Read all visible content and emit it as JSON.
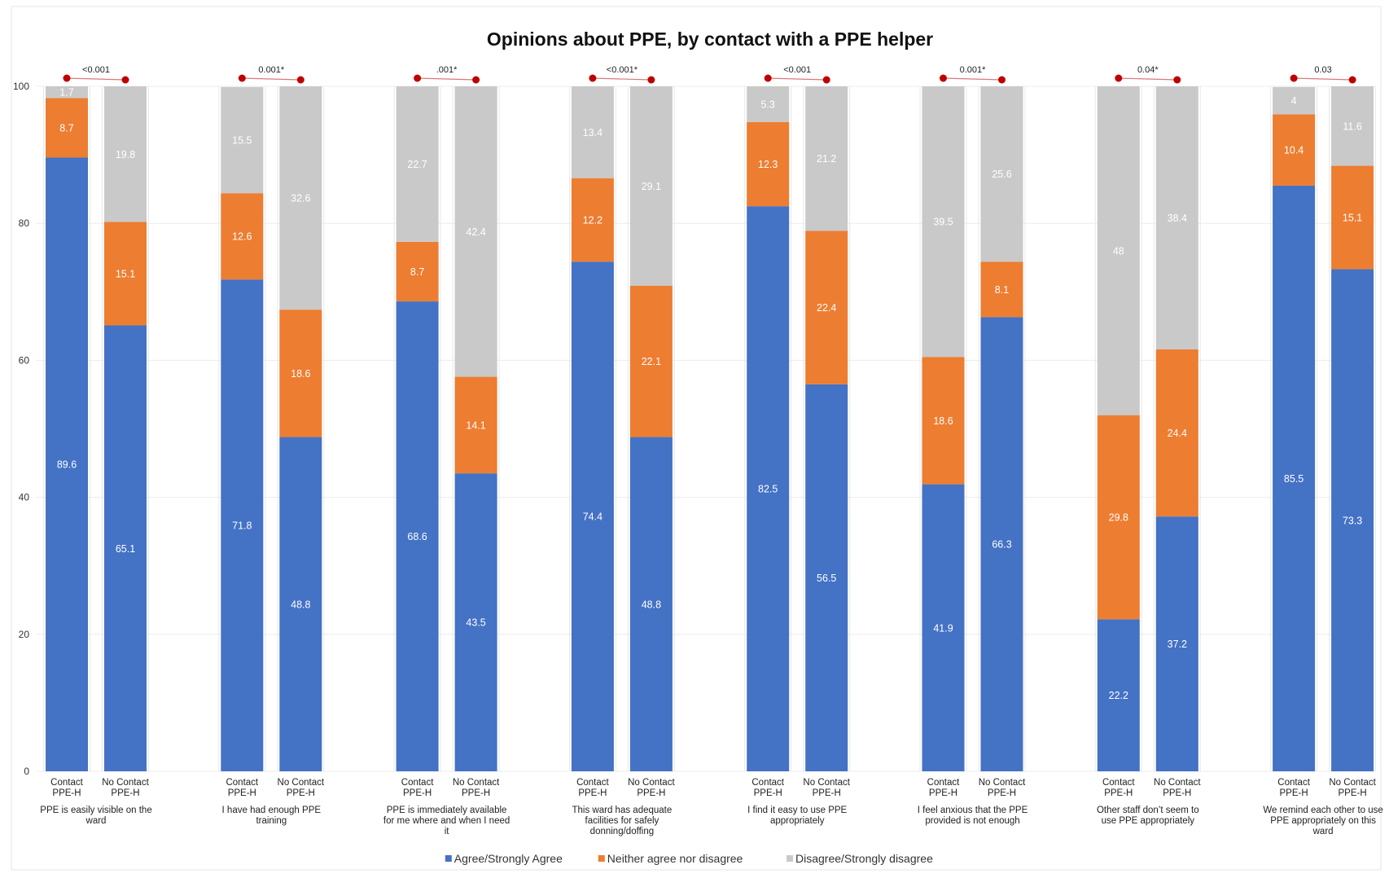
{
  "chart_data": {
    "type": "bar",
    "stacked": true,
    "title": "Opinions about PPE, by  contact with a PPE helper",
    "ylim": [
      0,
      100
    ],
    "yticks": [
      0,
      20,
      40,
      60,
      80,
      100
    ],
    "grid": true,
    "legend_position": "bottom",
    "legend": [
      {
        "name": "Agree/Strongly Agree",
        "color": "#4472C4"
      },
      {
        "name": "Neither agree nor disagree",
        "color": "#ED7D31"
      },
      {
        "name": "Disagree/Strongly disagree",
        "color": "#C9C9C9"
      }
    ],
    "bar_labels": [
      "Contact PPE-H",
      "No Contact PPE-H"
    ],
    "groups": [
      {
        "label": "PPE is easily visible on the ward",
        "p_value": "<0.001",
        "bars": [
          {
            "label": "Contact PPE-H",
            "values": [
              89.6,
              8.7,
              1.7
            ]
          },
          {
            "label": "No Contact PPE-H",
            "values": [
              65.1,
              15.1,
              19.8
            ]
          }
        ]
      },
      {
        "label": "I have had enough PPE training",
        "p_value": "0.001*",
        "bars": [
          {
            "label": "Contact PPE-H",
            "values": [
              71.8,
              12.6,
              15.5
            ]
          },
          {
            "label": "No Contact PPE-H",
            "values": [
              48.8,
              18.6,
              32.6
            ]
          }
        ]
      },
      {
        "label": "PPE is immediately available for me where and when I need it",
        "p_value": ".001*",
        "bars": [
          {
            "label": "Contact PPE-H",
            "values": [
              68.6,
              8.7,
              22.7
            ]
          },
          {
            "label": "No Contact PPE-H",
            "values": [
              43.5,
              14.1,
              42.4
            ]
          }
        ]
      },
      {
        "label": "This ward has adequate facilities for safely donning/doffing",
        "p_value": "<0.001*",
        "bars": [
          {
            "label": "Contact PPE-H",
            "values": [
              74.4,
              12.2,
              13.4
            ]
          },
          {
            "label": "No Contact PPE-H",
            "values": [
              48.8,
              22.1,
              29.1
            ]
          }
        ]
      },
      {
        "label": "I find it easy to use PPE appropriately",
        "p_value": "<0.001",
        "bars": [
          {
            "label": "Contact PPE-H",
            "values": [
              82.5,
              12.3,
              5.3
            ]
          },
          {
            "label": "No Contact PPE-H",
            "values": [
              56.5,
              22.4,
              21.2
            ]
          }
        ]
      },
      {
        "label": "I feel anxious that the PPE provided is not enough",
        "p_value": "0.001*",
        "bars": [
          {
            "label": "Contact PPE-H",
            "values": [
              41.9,
              18.6,
              39.5
            ]
          },
          {
            "label": "No Contact PPE-H",
            "values": [
              66.3,
              8.1,
              25.6
            ]
          }
        ]
      },
      {
        "label": "Other staff don’t seem to use PPE appropriately",
        "p_value": "0.04*",
        "bars": [
          {
            "label": "Contact PPE-H",
            "values": [
              22.2,
              29.8,
              48
            ]
          },
          {
            "label": "No Contact PPE-H",
            "values": [
              37.2,
              24.4,
              38.4
            ]
          }
        ]
      },
      {
        "label": "We remind each other to use PPE appropriately on this ward",
        "p_value": "0.03",
        "bars": [
          {
            "label": "Contact PPE-H",
            "values": [
              85.5,
              10.4,
              4
            ]
          },
          {
            "label": "No Contact PPE-H",
            "values": [
              73.3,
              15.1,
              11.6
            ]
          }
        ]
      }
    ]
  }
}
